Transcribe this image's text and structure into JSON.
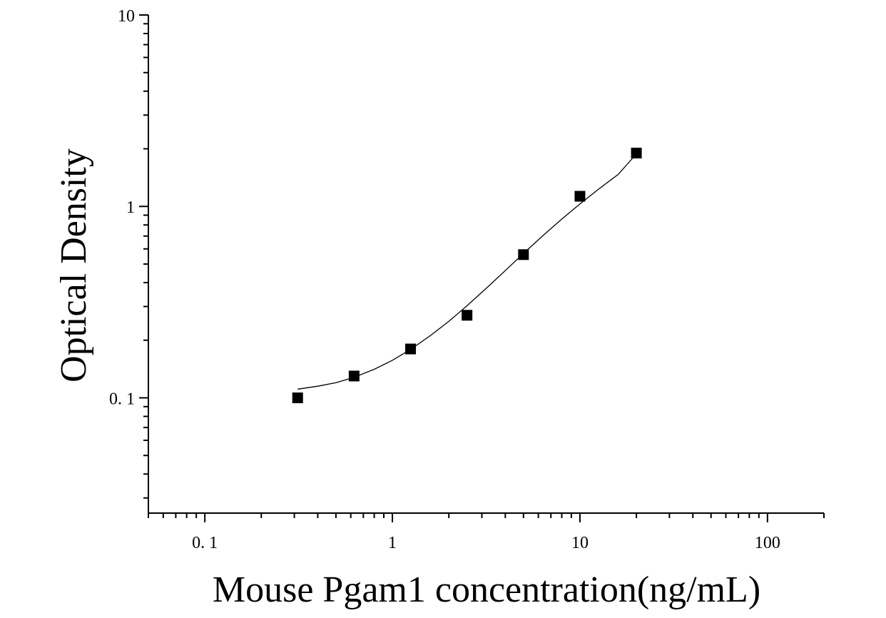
{
  "chart_data": {
    "type": "scatter",
    "title": "",
    "xlabel": "Mouse Pgam1 concentration(ng/mL)",
    "ylabel": "Optical Density",
    "x_scale": "log",
    "y_scale": "log",
    "xlim": [
      0.05,
      200
    ],
    "ylim": [
      0.025,
      10
    ],
    "x_ticks": [
      {
        "value": 0.1,
        "label": "0. 1"
      },
      {
        "value": 1,
        "label": "1"
      },
      {
        "value": 10,
        "label": "10"
      },
      {
        "value": 100,
        "label": "100"
      }
    ],
    "y_ticks": [
      {
        "value": 0.1,
        "label": "0. 1"
      },
      {
        "value": 1,
        "label": "1"
      },
      {
        "value": 10,
        "label": "10"
      }
    ],
    "grid": false,
    "legend": "none",
    "series": [
      {
        "x": [
          0.3125,
          0.625,
          1.25,
          2.5,
          5,
          10,
          20
        ],
        "y": [
          0.1,
          0.13,
          0.18,
          0.27,
          0.56,
          1.13,
          1.9
        ],
        "marker": "square",
        "color": "#000000"
      }
    ],
    "fit_curve": {
      "type": "4PL",
      "x": [
        0.3125,
        0.4,
        0.5,
        0.625,
        0.8,
        1.0,
        1.25,
        1.6,
        2.0,
        2.5,
        3.2,
        4.0,
        5.0,
        6.3,
        8.0,
        10.0,
        12.5,
        16.0,
        20.0
      ],
      "y": [
        0.111,
        0.115,
        0.12,
        0.128,
        0.141,
        0.157,
        0.179,
        0.212,
        0.251,
        0.303,
        0.377,
        0.462,
        0.568,
        0.699,
        0.859,
        1.03,
        1.225,
        1.47,
        1.88
      ],
      "color": "#000000"
    }
  }
}
